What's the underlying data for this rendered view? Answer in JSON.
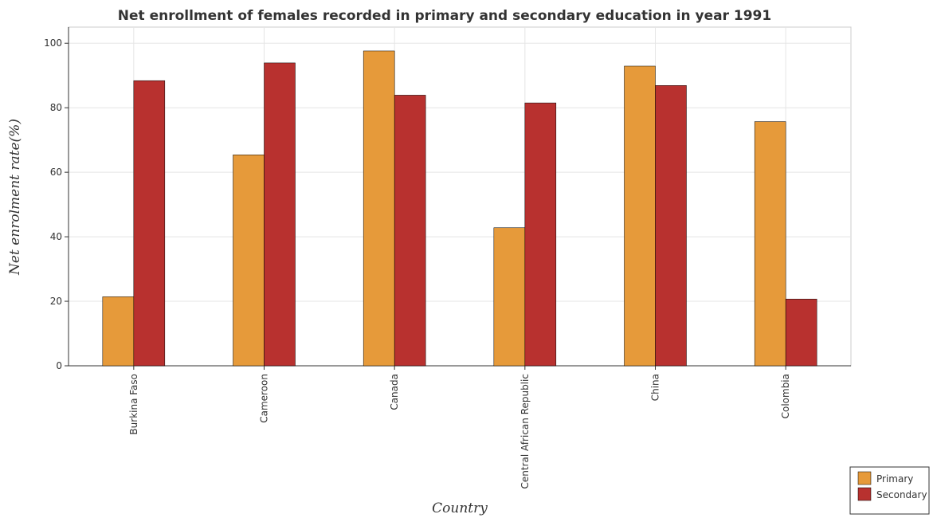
{
  "chart_data": {
    "type": "bar",
    "title": "Net enrollment of females recorded in primary and secondary education in year 1991",
    "xlabel": "Country",
    "ylabel": "Net enrolment rate(%)",
    "categories": [
      "Burkina Faso",
      "Cameroon",
      "Canada",
      "Central African Republic",
      "China",
      "Colombia"
    ],
    "series": [
      {
        "name": "Primary",
        "color": "#e69a3a",
        "values": [
          21.4,
          65.4,
          97.6,
          42.8,
          92.9,
          75.7
        ]
      },
      {
        "name": "Secondary",
        "color": "#b8312f",
        "values": [
          88.4,
          93.9,
          83.9,
          81.5,
          86.9,
          20.7
        ]
      }
    ],
    "ylim": [
      0,
      105
    ],
    "yticks": [
      0,
      20,
      40,
      60,
      80,
      100
    ],
    "grid": true,
    "legend_position": "bottom-right"
  }
}
